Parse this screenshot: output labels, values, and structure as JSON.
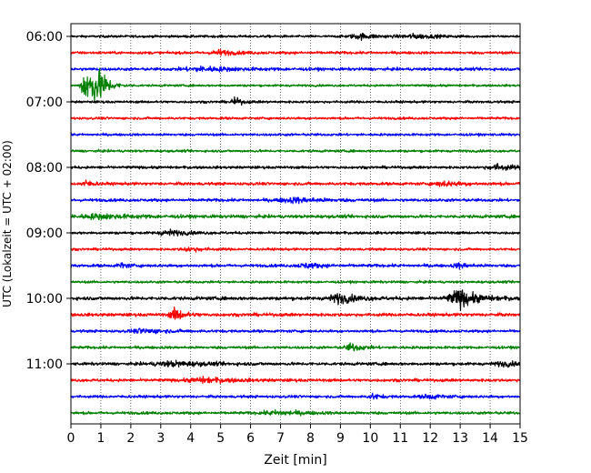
{
  "chart_data": {
    "type": "line",
    "title": "",
    "xlabel": "Zeit  [min]",
    "ylabel": "UTC (Lokalzeit = UTC + 02:00)",
    "xlim": [
      0,
      15
    ],
    "x_ticks": [
      "0",
      "1",
      "2",
      "3",
      "4",
      "5",
      "6",
      "7",
      "8",
      "9",
      "10",
      "11",
      "12",
      "13",
      "14",
      "15"
    ],
    "y_ticks": [
      {
        "label": "06:00",
        "row": 0
      },
      {
        "label": "07:00",
        "row": 4
      },
      {
        "label": "08:00",
        "row": 8
      },
      {
        "label": "09:00",
        "row": 12
      },
      {
        "label": "10:00",
        "row": 16
      },
      {
        "label": "11:00",
        "row": 20
      }
    ],
    "grid": "vertical dotted",
    "colors": [
      "#000000",
      "#ff0000",
      "#0000ff",
      "#008000"
    ],
    "traces": [
      {
        "start": "06:00",
        "amp": 1.0,
        "events": [
          {
            "t": 9.7,
            "a": 2.0,
            "w": 0.5
          },
          {
            "t": 11.5,
            "a": 1.5,
            "w": 0.6
          }
        ]
      },
      {
        "start": "06:15",
        "amp": 1.1,
        "events": [
          {
            "t": 5.0,
            "a": 2.0,
            "w": 0.4
          }
        ]
      },
      {
        "start": "06:30",
        "amp": 1.2,
        "events": [
          {
            "t": 4.5,
            "a": 1.6,
            "w": 1.0
          }
        ]
      },
      {
        "start": "06:45",
        "amp": 0.9,
        "events": [
          {
            "t": 0.5,
            "a": 14.0,
            "w": 0.2
          },
          {
            "t": 0.8,
            "a": 10.0,
            "w": 0.25
          },
          {
            "t": 1.05,
            "a": 7.0,
            "w": 0.2
          }
        ]
      },
      {
        "start": "07:00",
        "amp": 1.0,
        "events": [
          {
            "t": 5.5,
            "a": 2.8,
            "w": 0.2
          }
        ]
      },
      {
        "start": "07:15",
        "amp": 1.0,
        "events": []
      },
      {
        "start": "07:30",
        "amp": 1.0,
        "events": []
      },
      {
        "start": "07:45",
        "amp": 1.0,
        "events": []
      },
      {
        "start": "08:00",
        "amp": 1.1,
        "events": [
          {
            "t": 14.3,
            "a": 2.2,
            "w": 0.5
          }
        ]
      },
      {
        "start": "08:15",
        "amp": 1.2,
        "events": [
          {
            "t": 0.5,
            "a": 2.5,
            "w": 0.2
          },
          {
            "t": 12.5,
            "a": 1.8,
            "w": 0.5
          }
        ]
      },
      {
        "start": "08:30",
        "amp": 1.2,
        "events": [
          {
            "t": 7.5,
            "a": 1.8,
            "w": 0.8
          }
        ]
      },
      {
        "start": "08:45",
        "amp": 1.3,
        "events": [
          {
            "t": 1.0,
            "a": 1.6,
            "w": 1.0
          }
        ]
      },
      {
        "start": "09:00",
        "amp": 1.1,
        "events": [
          {
            "t": 3.3,
            "a": 2.0,
            "w": 0.5
          }
        ]
      },
      {
        "start": "09:15",
        "amp": 1.0,
        "events": [
          {
            "t": 4.0,
            "a": 1.6,
            "w": 0.4
          }
        ]
      },
      {
        "start": "09:30",
        "amp": 1.2,
        "events": [
          {
            "t": 1.7,
            "a": 2.0,
            "w": 0.2
          },
          {
            "t": 7.9,
            "a": 1.8,
            "w": 0.4
          },
          {
            "t": 13.0,
            "a": 1.8,
            "w": 0.3
          }
        ]
      },
      {
        "start": "09:45",
        "amp": 1.0,
        "events": []
      },
      {
        "start": "10:00",
        "amp": 1.4,
        "events": [
          {
            "t": 9.0,
            "a": 3.5,
            "w": 0.5
          },
          {
            "t": 13.0,
            "a": 7.0,
            "w": 0.5
          }
        ]
      },
      {
        "start": "10:15",
        "amp": 1.3,
        "events": [
          {
            "t": 3.5,
            "a": 5.0,
            "w": 0.25
          }
        ]
      },
      {
        "start": "10:30",
        "amp": 1.1,
        "events": [
          {
            "t": 2.5,
            "a": 1.6,
            "w": 0.6
          }
        ]
      },
      {
        "start": "10:45",
        "amp": 1.1,
        "events": [
          {
            "t": 9.4,
            "a": 3.0,
            "w": 0.3
          }
        ]
      },
      {
        "start": "11:00",
        "amp": 1.2,
        "events": [
          {
            "t": 3.5,
            "a": 1.8,
            "w": 1.0
          },
          {
            "t": 14.5,
            "a": 1.5,
            "w": 0.5
          }
        ]
      },
      {
        "start": "11:15",
        "amp": 1.2,
        "events": [
          {
            "t": 4.5,
            "a": 1.8,
            "w": 0.8
          }
        ]
      },
      {
        "start": "11:30",
        "amp": 1.1,
        "events": [
          {
            "t": 10.1,
            "a": 2.2,
            "w": 0.2
          },
          {
            "t": 12.0,
            "a": 1.6,
            "w": 0.4
          }
        ]
      },
      {
        "start": "11:45",
        "amp": 1.1,
        "events": [
          {
            "t": 7.0,
            "a": 1.6,
            "w": 0.8
          }
        ]
      }
    ]
  }
}
